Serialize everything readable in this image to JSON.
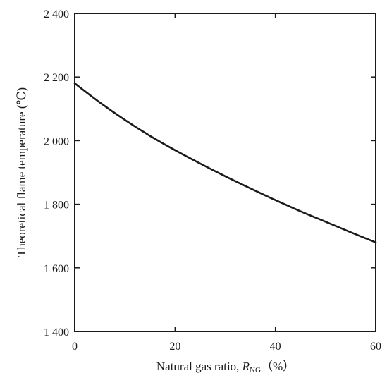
{
  "chart_data": {
    "type": "line",
    "xlabel": "Natural gas ratio, ",
    "xlabel_var": "R",
    "xlabel_sub": "NG",
    "xlabel_unit": "（%）",
    "ylabel": "Theoretical flame temperature (℃)",
    "xlim": [
      0,
      60
    ],
    "ylim": [
      1400,
      2400
    ],
    "x_ticks": [
      0,
      20,
      40,
      60
    ],
    "x_tick_labels": [
      "0",
      "20",
      "40",
      "60"
    ],
    "y_ticks": [
      1400,
      1600,
      1800,
      2000,
      2200,
      2400
    ],
    "y_tick_labels": [
      "1 400",
      "1 600",
      "1 800",
      "2 000",
      "2 200",
      "2 400"
    ],
    "grid": false,
    "series": [
      {
        "x": [
          0,
          5,
          10,
          15,
          20,
          25,
          30,
          35,
          40,
          45,
          50,
          55,
          60
        ],
        "y": [
          2180,
          2120,
          2065,
          2015,
          1970,
          1928,
          1888,
          1850,
          1813,
          1778,
          1745,
          1712,
          1680
        ]
      }
    ]
  }
}
